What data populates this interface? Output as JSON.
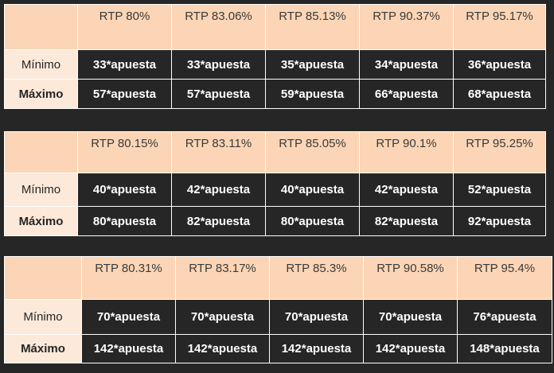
{
  "tables": [
    {
      "headers": [
        "RTP 80%",
        "RTP 83.06%",
        "RTP 85.13%",
        "RTP 90.37%",
        "RTP 95.17%"
      ],
      "minimo_label": "Mínimo",
      "maximo_label": "Máximo",
      "minimo": [
        "33*apuesta",
        "33*apuesta",
        "35*apuesta",
        "34*apuesta",
        "36*apuesta"
      ],
      "maximo": [
        "57*apuesta",
        "57*apuesta",
        "59*apuesta",
        "66*apuesta",
        "68*apuesta"
      ]
    },
    {
      "headers": [
        "RTP 80.15%",
        "RTP 83.11%",
        "RTP 85.05%",
        "RTP 90.1%",
        "RTP 95.25%"
      ],
      "minimo_label": "Mínimo",
      "maximo_label": "Máximo",
      "minimo": [
        "40*apuesta",
        "42*apuesta",
        "40*apuesta",
        "42*apuesta",
        "52*apuesta"
      ],
      "maximo": [
        "80*apuesta",
        "82*apuesta",
        "80*apuesta",
        "82*apuesta",
        "92*apuesta"
      ]
    },
    {
      "headers": [
        "RTP 80.31%",
        "RTP 83.17%",
        "RTP 85.3%",
        "RTP 90.58%",
        "RTP 95.4%"
      ],
      "minimo_label": "Mínimo",
      "maximo_label": "Máximo",
      "minimo": [
        "70*apuesta",
        "70*apuesta",
        "70*apuesta",
        "70*apuesta",
        "76*apuesta"
      ],
      "maximo": [
        "142*apuesta",
        "142*apuesta",
        "142*apuesta",
        "142*apuesta",
        "148*apuesta"
      ]
    }
  ],
  "colors": {
    "background": "#262626",
    "header_fill": "#fbd5b5",
    "label_fill": "#fde9d9",
    "value_fill": "#262626",
    "value_text": "#ffffff"
  }
}
